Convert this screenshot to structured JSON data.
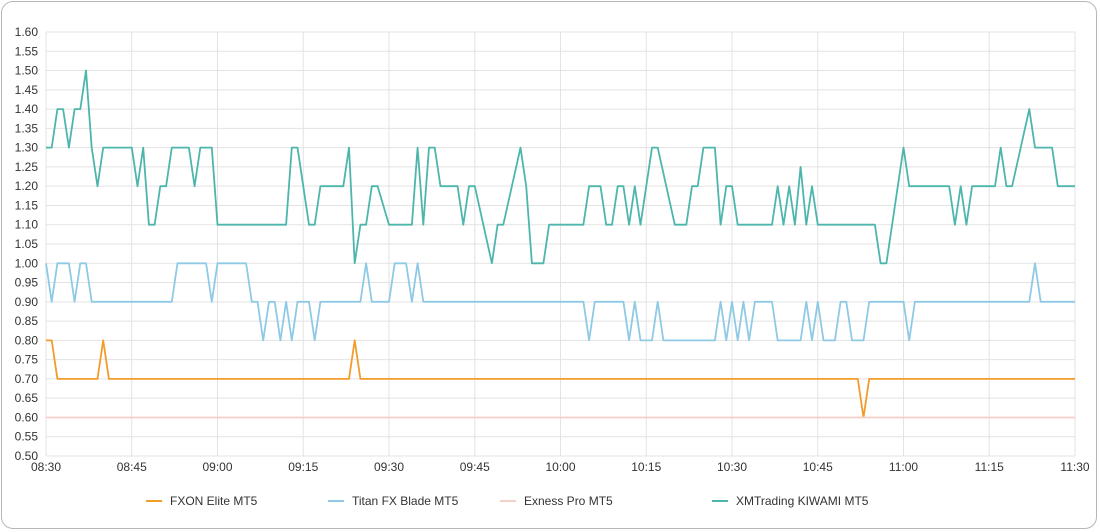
{
  "chart_data": {
    "type": "line",
    "title": "",
    "xlabel": "",
    "ylabel": "",
    "ylim": [
      0.5,
      1.6
    ],
    "ytick_step": 0.05,
    "xlim": [
      "08:30",
      "11:30"
    ],
    "x_ticks": [
      "08:30",
      "08:45",
      "09:00",
      "09:15",
      "09:30",
      "09:45",
      "10:00",
      "10:15",
      "10:30",
      "10:45",
      "11:00",
      "11:15",
      "11:30"
    ],
    "grid": true,
    "legend_position": "bottom",
    "series": [
      {
        "name": "FXON Elite MT5",
        "color": "#f39c2b",
        "points": [
          [
            "08:30",
            0.8
          ],
          [
            "08:31",
            0.8
          ],
          [
            "08:32",
            0.7
          ],
          [
            "08:39",
            0.7
          ],
          [
            "08:40",
            0.8
          ],
          [
            "08:41",
            0.7
          ],
          [
            "09:23",
            0.7
          ],
          [
            "09:24",
            0.8
          ],
          [
            "09:25",
            0.7
          ],
          [
            "10:52",
            0.7
          ],
          [
            "10:53",
            0.6
          ],
          [
            "10:54",
            0.7
          ],
          [
            "11:30",
            0.7
          ]
        ]
      },
      {
        "name": "Titan FX Blade MT5",
        "color": "#8ecae6",
        "points": [
          [
            "08:30",
            1.0
          ],
          [
            "08:31",
            0.9
          ],
          [
            "08:32",
            1.0
          ],
          [
            "08:34",
            1.0
          ],
          [
            "08:35",
            0.9
          ],
          [
            "08:36",
            1.0
          ],
          [
            "08:37",
            1.0
          ],
          [
            "08:38",
            0.9
          ],
          [
            "08:52",
            0.9
          ],
          [
            "08:53",
            1.0
          ],
          [
            "08:58",
            1.0
          ],
          [
            "08:59",
            0.9
          ],
          [
            "09:00",
            1.0
          ],
          [
            "09:05",
            1.0
          ],
          [
            "09:06",
            0.9
          ],
          [
            "09:07",
            0.9
          ],
          [
            "09:08",
            0.8
          ],
          [
            "09:09",
            0.9
          ],
          [
            "09:10",
            0.9
          ],
          [
            "09:11",
            0.8
          ],
          [
            "09:12",
            0.9
          ],
          [
            "09:13",
            0.8
          ],
          [
            "09:14",
            0.9
          ],
          [
            "09:16",
            0.9
          ],
          [
            "09:17",
            0.8
          ],
          [
            "09:18",
            0.9
          ],
          [
            "09:25",
            0.9
          ],
          [
            "09:26",
            1.0
          ],
          [
            "09:27",
            0.9
          ],
          [
            "09:30",
            0.9
          ],
          [
            "09:31",
            1.0
          ],
          [
            "09:33",
            1.0
          ],
          [
            "09:34",
            0.9
          ],
          [
            "09:35",
            1.0
          ],
          [
            "09:36",
            0.9
          ],
          [
            "10:04",
            0.9
          ],
          [
            "10:05",
            0.8
          ],
          [
            "10:06",
            0.9
          ],
          [
            "10:11",
            0.9
          ],
          [
            "10:12",
            0.8
          ],
          [
            "10:13",
            0.9
          ],
          [
            "10:14",
            0.8
          ],
          [
            "10:16",
            0.8
          ],
          [
            "10:17",
            0.9
          ],
          [
            "10:18",
            0.8
          ],
          [
            "10:27",
            0.8
          ],
          [
            "10:28",
            0.9
          ],
          [
            "10:29",
            0.8
          ],
          [
            "10:30",
            0.9
          ],
          [
            "10:31",
            0.8
          ],
          [
            "10:32",
            0.9
          ],
          [
            "10:33",
            0.8
          ],
          [
            "10:34",
            0.9
          ],
          [
            "10:37",
            0.9
          ],
          [
            "10:38",
            0.8
          ],
          [
            "10:42",
            0.8
          ],
          [
            "10:43",
            0.9
          ],
          [
            "10:44",
            0.8
          ],
          [
            "10:45",
            0.9
          ],
          [
            "10:46",
            0.8
          ],
          [
            "10:48",
            0.8
          ],
          [
            "10:49",
            0.9
          ],
          [
            "10:50",
            0.9
          ],
          [
            "10:51",
            0.8
          ],
          [
            "10:53",
            0.8
          ],
          [
            "10:54",
            0.9
          ],
          [
            "11:00",
            0.9
          ],
          [
            "11:01",
            0.8
          ],
          [
            "11:02",
            0.9
          ],
          [
            "11:22",
            0.9
          ],
          [
            "11:23",
            1.0
          ],
          [
            "11:24",
            0.9
          ],
          [
            "11:30",
            0.9
          ]
        ]
      },
      {
        "name": "Exness Pro MT5",
        "color": "#f6cfc9",
        "points": [
          [
            "08:30",
            0.6
          ],
          [
            "11:30",
            0.6
          ]
        ]
      },
      {
        "name": "XMTrading KIWAMI MT5",
        "color": "#4db6ac",
        "points": [
          [
            "08:30",
            1.3
          ],
          [
            "08:31",
            1.3
          ],
          [
            "08:32",
            1.4
          ],
          [
            "08:33",
            1.4
          ],
          [
            "08:34",
            1.3
          ],
          [
            "08:35",
            1.4
          ],
          [
            "08:36",
            1.4
          ],
          [
            "08:37",
            1.5
          ],
          [
            "08:38",
            1.3
          ],
          [
            "08:39",
            1.2
          ],
          [
            "08:40",
            1.3
          ],
          [
            "08:45",
            1.3
          ],
          [
            "08:46",
            1.2
          ],
          [
            "08:47",
            1.3
          ],
          [
            "08:48",
            1.1
          ],
          [
            "08:49",
            1.1
          ],
          [
            "08:50",
            1.2
          ],
          [
            "08:51",
            1.2
          ],
          [
            "08:52",
            1.3
          ],
          [
            "08:55",
            1.3
          ],
          [
            "08:56",
            1.2
          ],
          [
            "08:57",
            1.3
          ],
          [
            "08:59",
            1.3
          ],
          [
            "09:00",
            1.1
          ],
          [
            "09:12",
            1.1
          ],
          [
            "09:13",
            1.3
          ],
          [
            "09:14",
            1.3
          ],
          [
            "09:16",
            1.1
          ],
          [
            "09:17",
            1.1
          ],
          [
            "09:18",
            1.2
          ],
          [
            "09:22",
            1.2
          ],
          [
            "09:23",
            1.3
          ],
          [
            "09:24",
            1.0
          ],
          [
            "09:25",
            1.1
          ],
          [
            "09:26",
            1.1
          ],
          [
            "09:27",
            1.2
          ],
          [
            "09:28",
            1.2
          ],
          [
            "09:30",
            1.1
          ],
          [
            "09:34",
            1.1
          ],
          [
            "09:35",
            1.3
          ],
          [
            "09:36",
            1.1
          ],
          [
            "09:37",
            1.3
          ],
          [
            "09:38",
            1.3
          ],
          [
            "09:39",
            1.2
          ],
          [
            "09:42",
            1.2
          ],
          [
            "09:43",
            1.1
          ],
          [
            "09:44",
            1.2
          ],
          [
            "09:45",
            1.2
          ],
          [
            "09:48",
            1.0
          ],
          [
            "09:49",
            1.1
          ],
          [
            "09:50",
            1.1
          ],
          [
            "09:53",
            1.3
          ],
          [
            "09:54",
            1.2
          ],
          [
            "09:55",
            1.0
          ],
          [
            "09:57",
            1.0
          ],
          [
            "09:58",
            1.1
          ],
          [
            "10:04",
            1.1
          ],
          [
            "10:05",
            1.2
          ],
          [
            "10:07",
            1.2
          ],
          [
            "10:08",
            1.1
          ],
          [
            "10:09",
            1.1
          ],
          [
            "10:10",
            1.2
          ],
          [
            "10:11",
            1.2
          ],
          [
            "10:12",
            1.1
          ],
          [
            "10:13",
            1.2
          ],
          [
            "10:14",
            1.1
          ],
          [
            "10:16",
            1.3
          ],
          [
            "10:17",
            1.3
          ],
          [
            "10:20",
            1.1
          ],
          [
            "10:22",
            1.1
          ],
          [
            "10:23",
            1.2
          ],
          [
            "10:24",
            1.2
          ],
          [
            "10:25",
            1.3
          ],
          [
            "10:27",
            1.3
          ],
          [
            "10:28",
            1.1
          ],
          [
            "10:29",
            1.2
          ],
          [
            "10:30",
            1.2
          ],
          [
            "10:31",
            1.1
          ],
          [
            "10:37",
            1.1
          ],
          [
            "10:38",
            1.2
          ],
          [
            "10:39",
            1.1
          ],
          [
            "10:40",
            1.2
          ],
          [
            "10:41",
            1.1
          ],
          [
            "10:42",
            1.25
          ],
          [
            "10:43",
            1.1
          ],
          [
            "10:44",
            1.2
          ],
          [
            "10:45",
            1.1
          ],
          [
            "10:55",
            1.1
          ],
          [
            "10:56",
            1.0
          ],
          [
            "10:57",
            1.0
          ],
          [
            "10:59",
            1.2
          ],
          [
            "11:00",
            1.3
          ],
          [
            "11:01",
            1.2
          ],
          [
            "11:08",
            1.2
          ],
          [
            "11:09",
            1.1
          ],
          [
            "11:10",
            1.2
          ],
          [
            "11:11",
            1.1
          ],
          [
            "11:12",
            1.2
          ],
          [
            "11:16",
            1.2
          ],
          [
            "11:17",
            1.3
          ],
          [
            "11:18",
            1.2
          ],
          [
            "11:19",
            1.2
          ],
          [
            "11:22",
            1.4
          ],
          [
            "11:23",
            1.3
          ],
          [
            "11:26",
            1.3
          ],
          [
            "11:27",
            1.2
          ],
          [
            "11:30",
            1.2
          ]
        ]
      }
    ]
  }
}
